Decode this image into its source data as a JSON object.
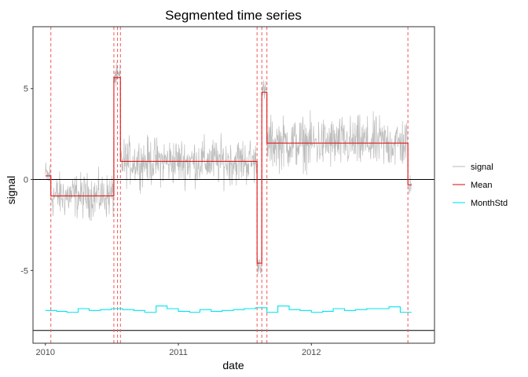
{
  "chart_data": {
    "type": "line",
    "title": "Segmented time series",
    "xlabel": "date",
    "ylabel": "signal",
    "xlim": [
      "2009-11-28",
      "2012-12-04"
    ],
    "ylim": [
      -9.0,
      8.4
    ],
    "x_ticks": [
      {
        "date": "2010-01-01",
        "label": "2010"
      },
      {
        "date": "2011-01-01",
        "label": "2011"
      },
      {
        "date": "2012-01-01",
        "label": "2012"
      }
    ],
    "y_ticks": [
      {
        "value": 5,
        "label": "5"
      },
      {
        "value": 0,
        "label": "0"
      },
      {
        "value": -5,
        "label": "-5"
      }
    ],
    "grid": false,
    "legend_position": "right",
    "series": [
      {
        "name": "signal",
        "color": "#bdbdbd",
        "kind": "noisy-daily",
        "start": "2010-01-01",
        "end": "2012-10-02",
        "segments": [
          {
            "from": "2010-01-01",
            "to": "2010-01-16",
            "mean": 0.2,
            "amplitude": 1.3
          },
          {
            "from": "2010-01-16",
            "to": "2010-07-08",
            "mean": -0.9,
            "amplitude": 1.8
          },
          {
            "from": "2010-07-08",
            "to": "2010-07-26",
            "mean": 5.6,
            "amplitude": 1.1
          },
          {
            "from": "2010-07-26",
            "to": "2011-08-05",
            "mean": 1.0,
            "amplitude": 1.9
          },
          {
            "from": "2011-08-05",
            "to": "2011-08-18",
            "mean": -4.6,
            "amplitude": 0.9
          },
          {
            "from": "2011-08-18",
            "to": "2011-09-01",
            "mean": 4.8,
            "amplitude": 1.0
          },
          {
            "from": "2011-09-01",
            "to": "2012-09-22",
            "mean": 2.0,
            "amplitude": 2.1
          },
          {
            "from": "2012-09-22",
            "to": "2012-10-02",
            "mean": -0.3,
            "amplitude": 0.8
          }
        ]
      },
      {
        "name": "Mean",
        "color": "#e41a1c",
        "kind": "step",
        "points": [
          {
            "x": "2010-01-01",
            "y": 0.2
          },
          {
            "x": "2010-01-16",
            "y": -0.9
          },
          {
            "x": "2010-07-08",
            "y": 5.6
          },
          {
            "x": "2010-07-26",
            "y": 1.0
          },
          {
            "x": "2011-08-05",
            "y": -4.6
          },
          {
            "x": "2011-08-18",
            "y": 4.8
          },
          {
            "x": "2011-09-01",
            "y": 2.0
          },
          {
            "x": "2012-09-22",
            "y": -0.3
          },
          {
            "x": "2012-10-02",
            "y": -0.3
          }
        ]
      },
      {
        "name": "MonthStd",
        "color": "#00e5ee",
        "kind": "step",
        "points": [
          {
            "x": "2010-01-01",
            "y": -7.2
          },
          {
            "x": "2010-02-01",
            "y": -7.25
          },
          {
            "x": "2010-03-01",
            "y": -7.3
          },
          {
            "x": "2010-04-01",
            "y": -7.1
          },
          {
            "x": "2010-05-01",
            "y": -7.2
          },
          {
            "x": "2010-06-01",
            "y": -7.15
          },
          {
            "x": "2010-07-01",
            "y": -7.1
          },
          {
            "x": "2010-08-01",
            "y": -7.15
          },
          {
            "x": "2010-09-01",
            "y": -7.2
          },
          {
            "x": "2010-10-01",
            "y": -7.3
          },
          {
            "x": "2010-11-01",
            "y": -6.95
          },
          {
            "x": "2010-12-01",
            "y": -7.1
          },
          {
            "x": "2011-01-01",
            "y": -7.25
          },
          {
            "x": "2011-02-01",
            "y": -7.3
          },
          {
            "x": "2011-03-01",
            "y": -7.15
          },
          {
            "x": "2011-04-01",
            "y": -7.25
          },
          {
            "x": "2011-05-01",
            "y": -7.2
          },
          {
            "x": "2011-06-01",
            "y": -7.15
          },
          {
            "x": "2011-07-01",
            "y": -7.1
          },
          {
            "x": "2011-08-01",
            "y": -7.05
          },
          {
            "x": "2011-09-01",
            "y": -7.3
          },
          {
            "x": "2011-10-01",
            "y": -6.95
          },
          {
            "x": "2011-11-01",
            "y": -7.15
          },
          {
            "x": "2011-12-01",
            "y": -7.2
          },
          {
            "x": "2012-01-01",
            "y": -7.3
          },
          {
            "x": "2012-02-01",
            "y": -7.25
          },
          {
            "x": "2012-03-01",
            "y": -7.1
          },
          {
            "x": "2012-04-01",
            "y": -7.2
          },
          {
            "x": "2012-05-01",
            "y": -7.15
          },
          {
            "x": "2012-06-01",
            "y": -7.1
          },
          {
            "x": "2012-07-01",
            "y": -7.1
          },
          {
            "x": "2012-08-01",
            "y": -7.0
          },
          {
            "x": "2012-09-01",
            "y": -7.3
          },
          {
            "x": "2012-10-02",
            "y": -7.3
          }
        ]
      }
    ],
    "reference_lines": {
      "horizontal": [
        {
          "y": 0,
          "color": "#000000"
        },
        {
          "y": -8.3,
          "color": "#000000"
        }
      ],
      "vertical_dashed_color": "#ef5a5a",
      "vertical_dashed": [
        "2010-01-16",
        "2010-07-08",
        "2010-07-18",
        "2010-07-26",
        "2011-08-05",
        "2011-08-18",
        "2011-09-01",
        "2012-09-22"
      ]
    }
  }
}
